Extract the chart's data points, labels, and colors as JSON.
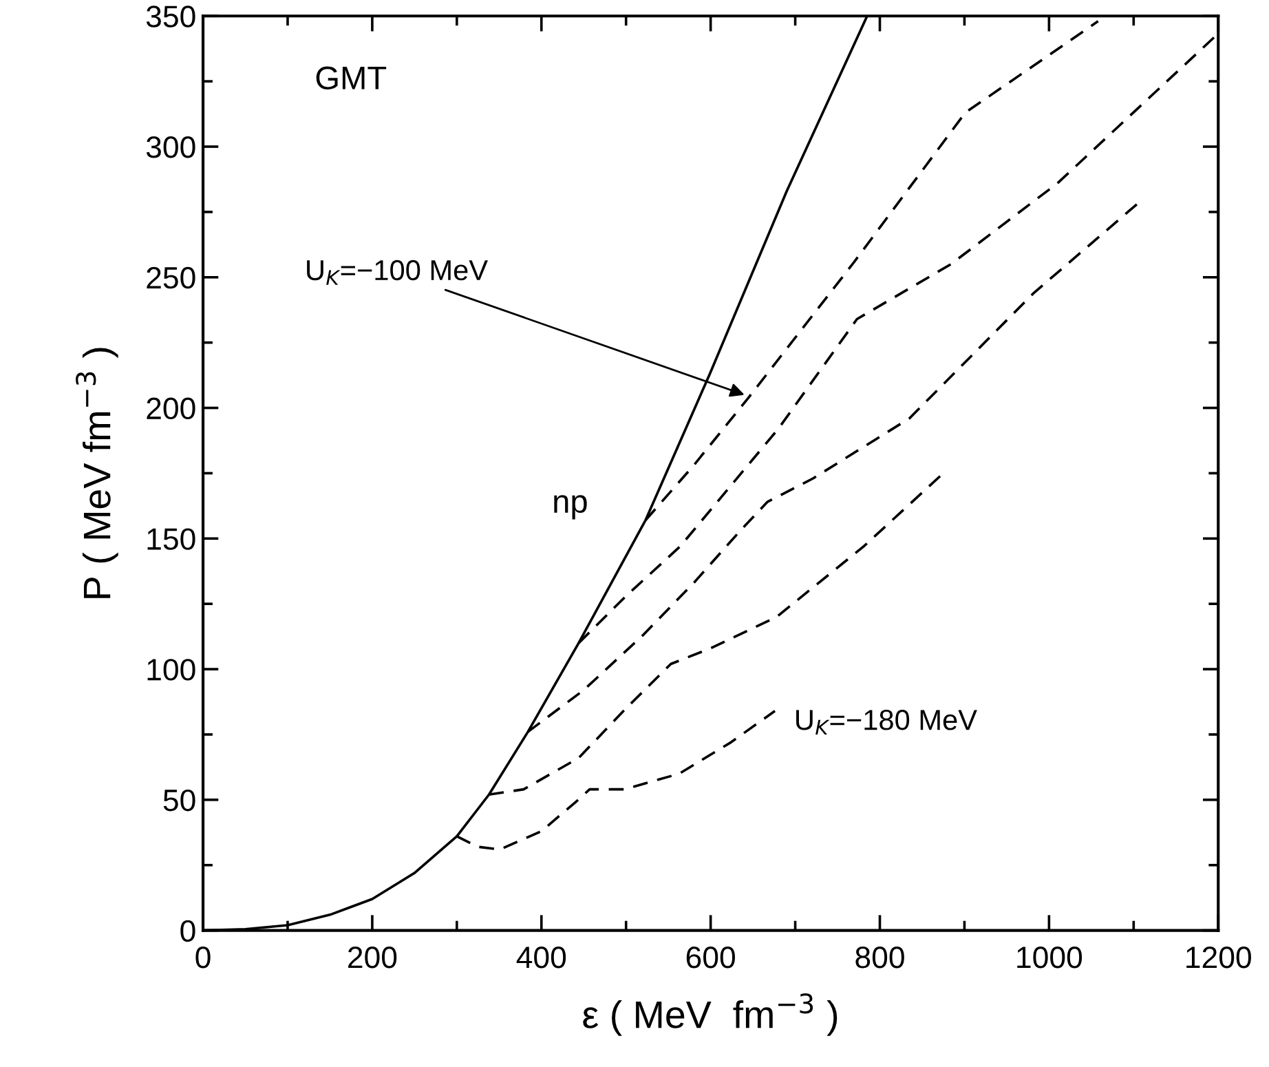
{
  "chart_data": {
    "type": "line",
    "xlabel": "ε ( MeV  fm$^{−3}$ )",
    "ylabel": "P ( MeV fm$^{−3}$ )",
    "xlim": [
      0,
      1200
    ],
    "ylim": [
      0,
      350
    ],
    "xticks": [
      0,
      {
        "value": 100,
        "label": null
      },
      200,
      {
        "value": 300,
        "label": null
      },
      400,
      {
        "value": 500,
        "label": null
      },
      600,
      {
        "value": 700,
        "label": null
      },
      800,
      {
        "value": 900,
        "label": null
      },
      1000,
      {
        "value": 1100,
        "label": null
      },
      1200
    ],
    "yticks": [
      0,
      {
        "value": 25,
        "label": null
      },
      50,
      {
        "value": 75,
        "label": null
      },
      100,
      {
        "value": 125,
        "label": null
      },
      150,
      {
        "value": 175,
        "label": null
      },
      200,
      {
        "value": 225,
        "label": null
      },
      250,
      {
        "value": 275,
        "label": null
      },
      300,
      {
        "value": 325,
        "label": null
      },
      350
    ],
    "grid": false,
    "legend": false,
    "series": [
      {
        "name": "np",
        "color": "#000000",
        "line_style": "solid",
        "x": [
          0,
          50,
          100,
          150,
          200,
          250,
          300,
          338,
          384,
          444,
          523,
          599,
          690,
          785
        ],
        "values": [
          0,
          0.5,
          2,
          6,
          12,
          22,
          36,
          52,
          76,
          110,
          157,
          213,
          283,
          350
        ]
      },
      {
        "color": "#000000",
        "line_style": "dashed",
        "x": [
          300,
          325,
          351,
          400,
          440,
          457,
          498,
          563,
          624,
          676
        ],
        "values": [
          36,
          32,
          31,
          38,
          49,
          54,
          54,
          60,
          72,
          84
        ]
      },
      {
        "color": "#000000",
        "line_style": "dashed",
        "x": [
          338,
          379,
          444,
          500,
          553,
          600,
          678,
          781,
          875
        ],
        "values": [
          52,
          54,
          66,
          85,
          102,
          108,
          120,
          147,
          175
        ]
      },
      {
        "color": "#000000",
        "line_style": "dashed",
        "x": [
          384,
          450,
          520,
          580,
          635,
          667,
          721,
          835,
          982,
          1104
        ],
        "values": [
          76,
          92,
          113,
          133,
          153,
          164,
          173,
          196,
          244,
          278
        ]
      },
      {
        "color": "#000000",
        "line_style": "dashed",
        "x": [
          444,
          500,
          564,
          680,
          773,
          884,
          1010,
          1199
        ],
        "values": [
          110,
          128,
          147,
          192,
          234,
          255,
          286,
          343
        ]
      },
      {
        "color": "#000000",
        "line_style": "dashed",
        "x": [
          523,
          580,
          645,
          770,
          901,
          1058
        ],
        "values": [
          157,
          178,
          204,
          256,
          313,
          348
        ]
      }
    ],
    "annotations": [
      "GMT",
      {
        "text": "U$_{K}$=−100 MeV",
        "x": 640,
        "y": 205
      },
      {
        "text": "U$_{K}$=−180 MeV",
        "x": 676,
        "y": 84
      }
    ]
  }
}
